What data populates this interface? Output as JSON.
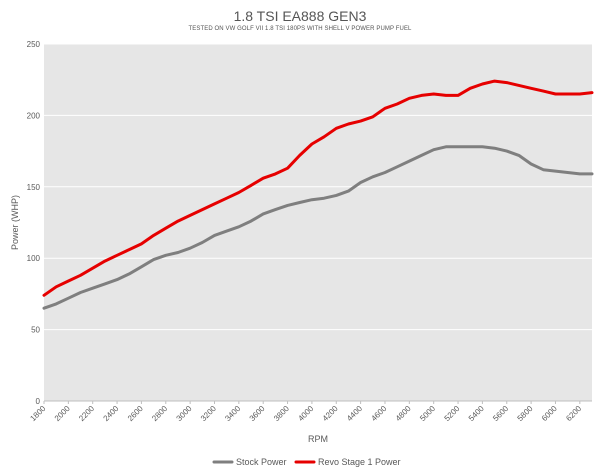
{
  "chart_data": {
    "type": "line",
    "title": "1.8 TSI EA888 GEN3",
    "subtitle": "TESTED ON VW GOLF VII 1.8 TSI 180PS WITH SHELL V POWER PUMP FUEL",
    "xlabel": "RPM",
    "ylabel": "Power (WHP)",
    "xlim": [
      1800,
      6300
    ],
    "ylim": [
      0,
      250
    ],
    "yticks": [
      0,
      50,
      100,
      150,
      200,
      250
    ],
    "xticks": [
      1800,
      2000,
      2200,
      2400,
      2600,
      2800,
      3000,
      3200,
      3400,
      3600,
      3800,
      4000,
      4200,
      4400,
      4600,
      4800,
      5000,
      5200,
      5400,
      5600,
      5800,
      6000,
      6200
    ],
    "grid": "horizontal",
    "legend_position": "bottom",
    "colors": {
      "stock": "#7f7f7f",
      "stage1": "#e60000",
      "plot_bg": "#e6e6e6",
      "grid": "#ffffff"
    },
    "x": [
      1800,
      1900,
      2000,
      2100,
      2200,
      2300,
      2400,
      2500,
      2600,
      2700,
      2800,
      2900,
      3000,
      3100,
      3200,
      3300,
      3400,
      3500,
      3600,
      3700,
      3800,
      3900,
      4000,
      4100,
      4200,
      4300,
      4400,
      4500,
      4600,
      4700,
      4800,
      4900,
      5000,
      5100,
      5200,
      5300,
      5400,
      5500,
      5600,
      5700,
      5800,
      5900,
      6000,
      6100,
      6200,
      6300
    ],
    "series": [
      {
        "name": "Stock Power",
        "color": "#7f7f7f",
        "values": [
          65,
          68,
          72,
          76,
          79,
          82,
          85,
          89,
          94,
          99,
          102,
          104,
          107,
          111,
          116,
          119,
          122,
          126,
          131,
          134,
          137,
          139,
          141,
          142,
          144,
          147,
          153,
          157,
          160,
          164,
          168,
          172,
          176,
          178,
          178,
          178,
          178,
          177,
          175,
          172,
          166,
          162,
          161,
          160,
          159,
          159
        ]
      },
      {
        "name": "Revo Stage 1 Power",
        "color": "#e60000",
        "values": [
          74,
          80,
          84,
          88,
          93,
          98,
          102,
          106,
          110,
          116,
          121,
          126,
          130,
          134,
          138,
          142,
          146,
          151,
          156,
          159,
          163,
          172,
          180,
          185,
          191,
          194,
          196,
          199,
          205,
          208,
          212,
          214,
          215,
          214,
          214,
          219,
          222,
          224,
          223,
          221,
          219,
          217,
          215,
          215,
          215,
          216
        ]
      }
    ]
  }
}
